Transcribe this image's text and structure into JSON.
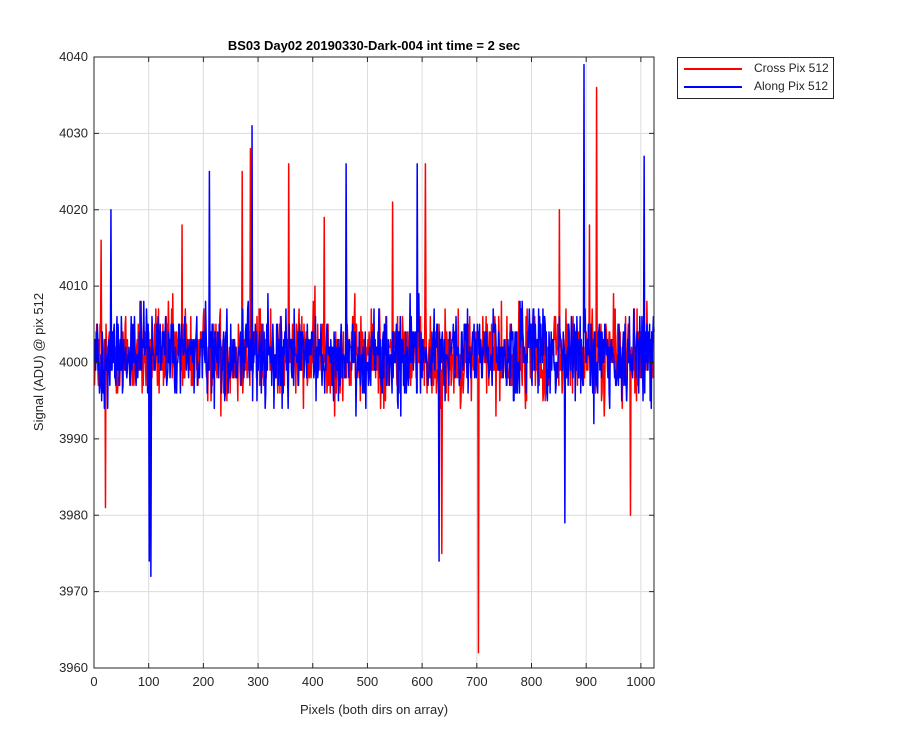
{
  "chart_data": {
    "type": "line",
    "title": "BS03 Day02 20190330-Dark-004 int time = 2 sec",
    "xlabel": "Pixels (both dirs on array)",
    "ylabel": "Signal (ADU) @ pix 512",
    "xlim": [
      0,
      1024
    ],
    "ylim": [
      3960,
      4040
    ],
    "xticks": [
      0,
      100,
      200,
      300,
      400,
      500,
      600,
      700,
      800,
      900,
      1000
    ],
    "yticks": [
      3960,
      3970,
      3980,
      3990,
      4000,
      4010,
      4020,
      4030,
      4040
    ],
    "grid": true,
    "legend": "outside-top-right",
    "n_points": 1024,
    "series": [
      {
        "name": "Cross Pix 512",
        "color": "#ff0000",
        "baseline": 4001,
        "noise_amplitude": 7,
        "peaks": [
          [
            12,
            4016
          ],
          [
            20,
            3981
          ],
          [
            160,
            4018
          ],
          [
            270,
            4025
          ],
          [
            285,
            4028
          ],
          [
            355,
            4026
          ],
          [
            420,
            4019
          ],
          [
            545,
            4021
          ],
          [
            605,
            4026
          ],
          [
            635,
            3975
          ],
          [
            702,
            3962
          ],
          [
            850,
            4020
          ],
          [
            905,
            4018
          ],
          [
            918,
            4036
          ],
          [
            980,
            3980
          ],
          [
            1010,
            4008
          ]
        ]
      },
      {
        "name": "Along Pix 512",
        "color": "#0000ff",
        "baseline": 4001,
        "noise_amplitude": 7,
        "peaks": [
          [
            30,
            4020
          ],
          [
            100,
            3974
          ],
          [
            103,
            3972
          ],
          [
            210,
            4025
          ],
          [
            288,
            4031
          ],
          [
            460,
            4026
          ],
          [
            590,
            4026
          ],
          [
            630,
            3974
          ],
          [
            860,
            3979
          ],
          [
            895,
            4039
          ],
          [
            1005,
            4027
          ]
        ]
      }
    ]
  }
}
